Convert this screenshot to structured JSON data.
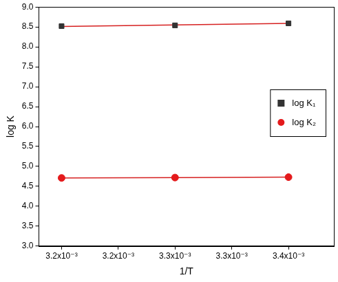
{
  "chart_data": {
    "type": "scatter",
    "x_label": "1/T",
    "y_label": "log K",
    "x": [
      0.0032,
      0.0033,
      0.0034
    ],
    "series": [
      {
        "name": "log K₁",
        "color": "#333333",
        "marker": "square",
        "values": [
          8.52,
          8.54,
          8.59
        ]
      },
      {
        "name": "log K₂",
        "color": "#e41a1c",
        "marker": "circle",
        "values": [
          4.71,
          4.72,
          4.73
        ]
      },
      {
        "type": "line",
        "color": "#d62020",
        "line_style": "solid",
        "values": [
          8.51,
          8.55,
          8.59
        ]
      },
      {
        "type": "line",
        "color": "#d62020",
        "line_style": "solid",
        "values": [
          4.71,
          4.72,
          4.73
        ]
      }
    ],
    "xlim": [
      0.00318,
      0.00344
    ],
    "xticks": [
      {
        "value": 0.0032,
        "label": "3.2x10⁻³"
      },
      {
        "value": 0.00325,
        "label": "3.2x10⁻³"
      },
      {
        "value": 0.0033,
        "label": "3.3x10⁻³"
      },
      {
        "value": 0.00335,
        "label": "3.3x10⁻³"
      },
      {
        "value": 0.0034,
        "label": "3.4x10⁻³"
      }
    ],
    "ylim": [
      3.0,
      9.0
    ],
    "yticks": [
      {
        "value": 3.0,
        "label": "3.0"
      },
      {
        "value": 3.5,
        "label": "3.5"
      },
      {
        "value": 4.0,
        "label": "4.0"
      },
      {
        "value": 4.5,
        "label": "4.5"
      },
      {
        "value": 5.0,
        "label": "5.0"
      },
      {
        "value": 5.5,
        "label": "5.5"
      },
      {
        "value": 6.0,
        "label": "6.0"
      },
      {
        "value": 6.5,
        "label": "6.5"
      },
      {
        "value": 7.0,
        "label": "7.0"
      },
      {
        "value": 7.5,
        "label": "7.5"
      },
      {
        "value": 8.0,
        "label": "8.0"
      },
      {
        "value": 8.5,
        "label": "8.5"
      },
      {
        "value": 9.0,
        "label": "9.0"
      }
    ],
    "grid": false,
    "legend": "right"
  }
}
